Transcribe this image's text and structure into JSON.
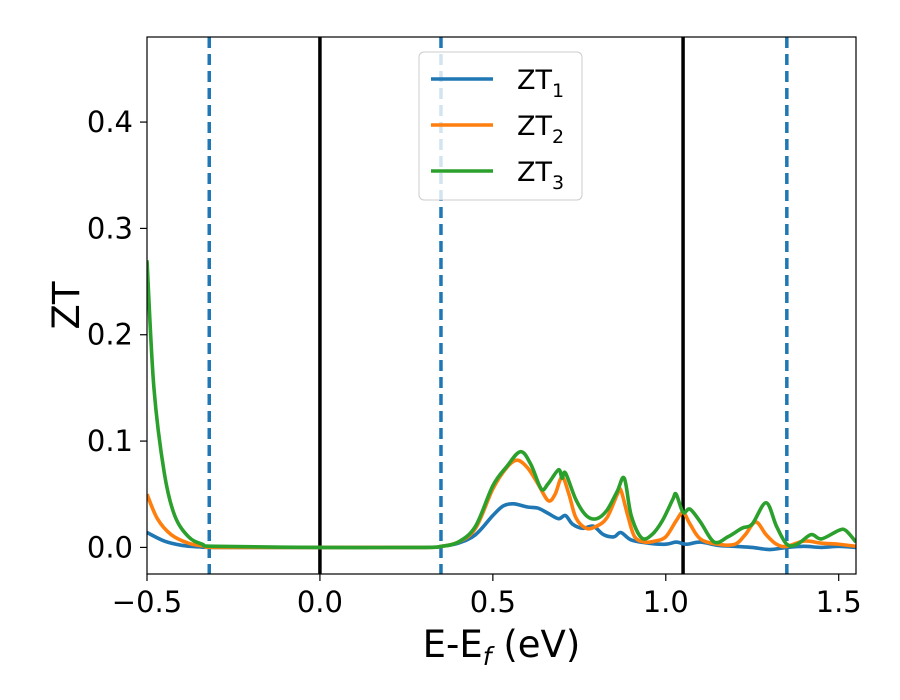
{
  "chart_data": {
    "type": "line",
    "xlabel": "E-E",
    "xlabel_sub": "f",
    "xlabel_unit": " (eV)",
    "ylabel": "ZT",
    "xlim": [
      -0.5,
      1.55
    ],
    "ylim": [
      -0.025,
      0.48
    ],
    "xticks": [
      {
        "value": -0.5,
        "label": "−0.5"
      },
      {
        "value": 0.0,
        "label": "0.0"
      },
      {
        "value": 0.5,
        "label": "0.5"
      },
      {
        "value": 1.0,
        "label": "1.0"
      },
      {
        "value": 1.5,
        "label": "1.5"
      }
    ],
    "yticks": [
      {
        "value": 0.0,
        "label": "0.0"
      },
      {
        "value": 0.1,
        "label": "0.1"
      },
      {
        "value": 0.2,
        "label": "0.2"
      },
      {
        "value": 0.3,
        "label": "0.3"
      },
      {
        "value": 0.4,
        "label": "0.4"
      }
    ],
    "grid": false,
    "legend_position": "top-center",
    "vlines": [
      {
        "x": -0.32,
        "style": "dashed",
        "color": "#1f77b4"
      },
      {
        "x": 0.0,
        "style": "solid",
        "color": "#000000"
      },
      {
        "x": 0.35,
        "style": "dashed",
        "color": "#1f77b4"
      },
      {
        "x": 1.05,
        "style": "solid",
        "color": "#000000"
      },
      {
        "x": 1.35,
        "style": "dashed",
        "color": "#1f77b4"
      }
    ],
    "series": [
      {
        "name": "ZT",
        "name_sub": "1",
        "color": "#1f77b4",
        "points": [
          [
            -0.5,
            0.014
          ],
          [
            -0.45,
            0.006
          ],
          [
            -0.4,
            0.002
          ],
          [
            -0.35,
            0.0005
          ],
          [
            -0.3,
            0.0
          ],
          [
            0.0,
            0.0
          ],
          [
            0.3,
            0.0
          ],
          [
            0.35,
            0.001
          ],
          [
            0.4,
            0.004
          ],
          [
            0.45,
            0.012
          ],
          [
            0.5,
            0.03
          ],
          [
            0.53,
            0.039
          ],
          [
            0.56,
            0.041
          ],
          [
            0.6,
            0.038
          ],
          [
            0.63,
            0.037
          ],
          [
            0.66,
            0.032
          ],
          [
            0.69,
            0.027
          ],
          [
            0.71,
            0.03
          ],
          [
            0.73,
            0.022
          ],
          [
            0.76,
            0.018
          ],
          [
            0.79,
            0.02
          ],
          [
            0.82,
            0.012
          ],
          [
            0.85,
            0.01
          ],
          [
            0.87,
            0.014
          ],
          [
            0.9,
            0.007
          ],
          [
            0.95,
            0.004
          ],
          [
            1.0,
            0.003
          ],
          [
            1.03,
            0.005
          ],
          [
            1.06,
            0.003
          ],
          [
            1.1,
            0.005
          ],
          [
            1.15,
            0.002
          ],
          [
            1.2,
            0.001
          ],
          [
            1.25,
            0.0
          ],
          [
            1.3,
            -0.002
          ],
          [
            1.35,
            0.0
          ],
          [
            1.4,
            0.001
          ],
          [
            1.45,
            0.0
          ],
          [
            1.5,
            0.001
          ],
          [
            1.55,
            0.0
          ]
        ]
      },
      {
        "name": "ZT",
        "name_sub": "2",
        "color": "#ff7f0e",
        "points": [
          [
            -0.5,
            0.05
          ],
          [
            -0.47,
            0.027
          ],
          [
            -0.43,
            0.012
          ],
          [
            -0.38,
            0.004
          ],
          [
            -0.33,
            0.001
          ],
          [
            -0.3,
            0.0
          ],
          [
            0.0,
            0.0
          ],
          [
            0.3,
            0.0
          ],
          [
            0.35,
            0.001
          ],
          [
            0.4,
            0.005
          ],
          [
            0.45,
            0.018
          ],
          [
            0.5,
            0.055
          ],
          [
            0.54,
            0.075
          ],
          [
            0.57,
            0.082
          ],
          [
            0.6,
            0.075
          ],
          [
            0.63,
            0.06
          ],
          [
            0.66,
            0.044
          ],
          [
            0.68,
            0.05
          ],
          [
            0.7,
            0.066
          ],
          [
            0.72,
            0.05
          ],
          [
            0.74,
            0.028
          ],
          [
            0.77,
            0.018
          ],
          [
            0.8,
            0.02
          ],
          [
            0.83,
            0.028
          ],
          [
            0.86,
            0.05
          ],
          [
            0.87,
            0.054
          ],
          [
            0.89,
            0.03
          ],
          [
            0.91,
            0.01
          ],
          [
            0.94,
            0.005
          ],
          [
            0.97,
            0.006
          ],
          [
            1.0,
            0.01
          ],
          [
            1.03,
            0.025
          ],
          [
            1.05,
            0.033
          ],
          [
            1.07,
            0.022
          ],
          [
            1.1,
            0.008
          ],
          [
            1.15,
            0.003
          ],
          [
            1.2,
            0.003
          ],
          [
            1.23,
            0.012
          ],
          [
            1.26,
            0.024
          ],
          [
            1.29,
            0.012
          ],
          [
            1.32,
            0.003
          ],
          [
            1.35,
            0.001
          ],
          [
            1.4,
            0.006
          ],
          [
            1.45,
            0.004
          ],
          [
            1.5,
            0.003
          ],
          [
            1.55,
            0.001
          ]
        ]
      },
      {
        "name": "ZT",
        "name_sub": "3",
        "color": "#2ca02c",
        "points": [
          [
            -0.5,
            0.27
          ],
          [
            -0.48,
            0.15
          ],
          [
            -0.45,
            0.07
          ],
          [
            -0.42,
            0.03
          ],
          [
            -0.38,
            0.01
          ],
          [
            -0.34,
            0.003
          ],
          [
            -0.3,
            0.001
          ],
          [
            0.0,
            0.0
          ],
          [
            0.3,
            0.0
          ],
          [
            0.35,
            0.001
          ],
          [
            0.4,
            0.005
          ],
          [
            0.45,
            0.02
          ],
          [
            0.5,
            0.058
          ],
          [
            0.54,
            0.076
          ],
          [
            0.58,
            0.09
          ],
          [
            0.61,
            0.078
          ],
          [
            0.64,
            0.055
          ],
          [
            0.66,
            0.06
          ],
          [
            0.69,
            0.073
          ],
          [
            0.7,
            0.065
          ],
          [
            0.71,
            0.07
          ],
          [
            0.74,
            0.045
          ],
          [
            0.77,
            0.03
          ],
          [
            0.8,
            0.027
          ],
          [
            0.83,
            0.035
          ],
          [
            0.86,
            0.053
          ],
          [
            0.88,
            0.065
          ],
          [
            0.9,
            0.03
          ],
          [
            0.93,
            0.009
          ],
          [
            0.96,
            0.012
          ],
          [
            0.99,
            0.025
          ],
          [
            1.02,
            0.045
          ],
          [
            1.03,
            0.05
          ],
          [
            1.05,
            0.033
          ],
          [
            1.07,
            0.036
          ],
          [
            1.1,
            0.024
          ],
          [
            1.14,
            0.005
          ],
          [
            1.18,
            0.01
          ],
          [
            1.22,
            0.018
          ],
          [
            1.25,
            0.022
          ],
          [
            1.29,
            0.042
          ],
          [
            1.32,
            0.02
          ],
          [
            1.35,
            0.003
          ],
          [
            1.38,
            0.003
          ],
          [
            1.42,
            0.012
          ],
          [
            1.45,
            0.008
          ],
          [
            1.5,
            0.016
          ],
          [
            1.52,
            0.016
          ],
          [
            1.55,
            0.005
          ]
        ]
      }
    ]
  }
}
